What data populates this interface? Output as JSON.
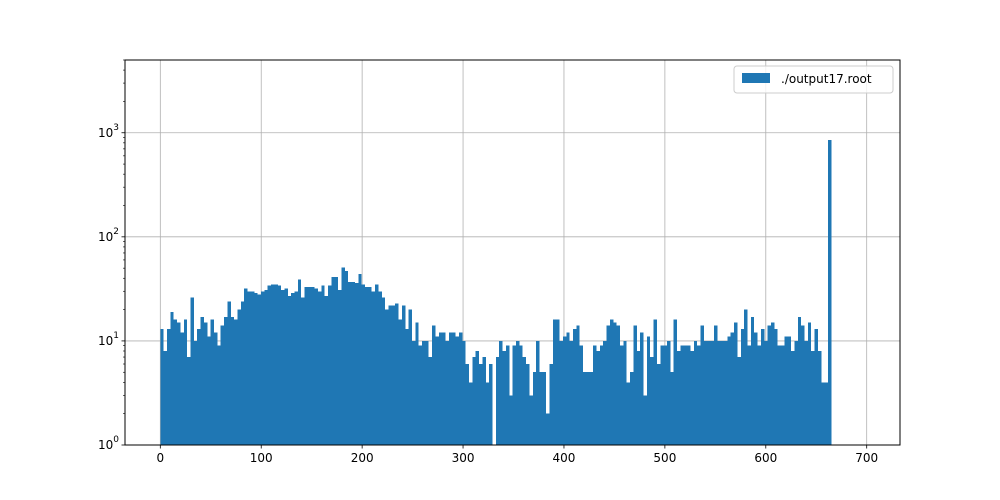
{
  "chart_data": {
    "type": "bar",
    "title": "",
    "xlabel": "",
    "ylabel": "",
    "xlim": [
      -35,
      733
    ],
    "ylim": [
      1,
      5000
    ],
    "y_scale": "log",
    "grid": true,
    "legend_placement": "top-right",
    "x_ticks": [
      "0",
      "100",
      "200",
      "300",
      "400",
      "500",
      "600",
      "700"
    ],
    "x_tick_values": [
      0,
      100,
      200,
      300,
      400,
      500,
      600,
      700
    ],
    "y_ticks": [
      {
        "value": 1,
        "base": "10",
        "exp": "0"
      },
      {
        "value": 10,
        "base": "10",
        "exp": "1"
      },
      {
        "value": 100,
        "base": "10",
        "exp": "2"
      },
      {
        "value": 1000,
        "base": "10",
        "exp": "3"
      }
    ],
    "bin_width": 3.325,
    "bin_start": 0,
    "series": [
      {
        "name": "./output17.root",
        "color": "#1f77b4",
        "values": [
          13,
          8,
          13,
          19,
          16,
          15,
          12,
          16,
          7,
          26,
          10,
          13,
          17,
          15,
          11,
          16,
          12,
          9,
          14,
          17,
          24,
          17,
          16,
          20,
          24,
          32,
          30,
          30,
          29,
          28,
          30,
          31,
          34,
          35,
          35,
          34,
          31,
          32,
          27,
          29,
          30,
          39,
          26,
          33,
          33,
          33,
          32,
          30,
          34,
          27,
          34,
          41,
          41,
          31,
          51,
          47,
          37,
          37,
          36,
          44,
          35,
          33,
          33,
          30,
          35,
          30,
          26,
          20,
          22,
          22,
          23,
          16,
          22,
          13,
          20,
          10,
          15,
          9,
          10,
          10,
          7,
          14,
          11,
          12,
          12,
          10,
          12,
          12,
          11,
          12,
          10,
          6,
          4,
          7,
          8,
          6,
          7,
          4,
          6,
          1,
          7,
          10,
          8,
          9,
          3,
          9,
          10,
          9,
          7,
          6,
          3,
          5,
          10,
          5,
          5,
          2,
          6,
          16,
          16,
          10,
          11,
          12,
          10,
          13,
          14,
          9,
          5,
          5,
          5,
          9,
          8,
          9,
          10,
          14,
          16,
          15,
          14,
          9,
          10,
          4,
          5,
          14,
          8,
          12,
          3,
          11,
          7,
          16,
          6,
          9,
          9,
          10,
          5,
          16,
          8,
          9,
          9,
          9,
          8,
          10,
          9,
          14,
          10,
          10,
          10,
          14,
          10,
          10,
          10,
          11,
          12,
          15,
          7,
          13,
          20,
          9,
          17,
          12,
          9,
          13,
          10,
          14,
          15,
          13,
          9,
          9,
          11,
          11,
          8,
          10,
          17,
          14,
          10,
          15,
          8,
          13,
          8,
          4,
          4,
          850
        ]
      }
    ]
  }
}
